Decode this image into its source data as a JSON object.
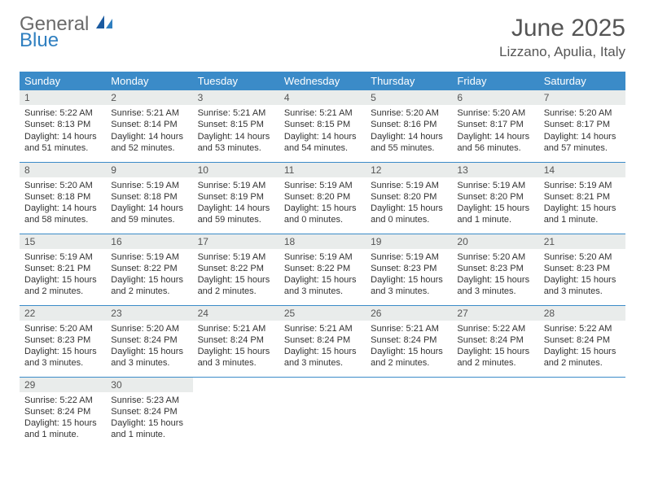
{
  "logo": {
    "line1": "General",
    "line2": "Blue"
  },
  "title": "June 2025",
  "location": "Lizzano, Apulia, Italy",
  "header_color": "#3b8bc8",
  "daynum_bg": "#e9eceb",
  "border_color": "#3b8bc8",
  "weekdays": [
    "Sunday",
    "Monday",
    "Tuesday",
    "Wednesday",
    "Thursday",
    "Friday",
    "Saturday"
  ],
  "days": [
    {
      "n": 1,
      "sunrise": "5:22 AM",
      "sunset": "8:13 PM",
      "daylight": "14 hours and 51 minutes."
    },
    {
      "n": 2,
      "sunrise": "5:21 AM",
      "sunset": "8:14 PM",
      "daylight": "14 hours and 52 minutes."
    },
    {
      "n": 3,
      "sunrise": "5:21 AM",
      "sunset": "8:15 PM",
      "daylight": "14 hours and 53 minutes."
    },
    {
      "n": 4,
      "sunrise": "5:21 AM",
      "sunset": "8:15 PM",
      "daylight": "14 hours and 54 minutes."
    },
    {
      "n": 5,
      "sunrise": "5:20 AM",
      "sunset": "8:16 PM",
      "daylight": "14 hours and 55 minutes."
    },
    {
      "n": 6,
      "sunrise": "5:20 AM",
      "sunset": "8:17 PM",
      "daylight": "14 hours and 56 minutes."
    },
    {
      "n": 7,
      "sunrise": "5:20 AM",
      "sunset": "8:17 PM",
      "daylight": "14 hours and 57 minutes."
    },
    {
      "n": 8,
      "sunrise": "5:20 AM",
      "sunset": "8:18 PM",
      "daylight": "14 hours and 58 minutes."
    },
    {
      "n": 9,
      "sunrise": "5:19 AM",
      "sunset": "8:18 PM",
      "daylight": "14 hours and 59 minutes."
    },
    {
      "n": 10,
      "sunrise": "5:19 AM",
      "sunset": "8:19 PM",
      "daylight": "14 hours and 59 minutes."
    },
    {
      "n": 11,
      "sunrise": "5:19 AM",
      "sunset": "8:20 PM",
      "daylight": "15 hours and 0 minutes."
    },
    {
      "n": 12,
      "sunrise": "5:19 AM",
      "sunset": "8:20 PM",
      "daylight": "15 hours and 0 minutes."
    },
    {
      "n": 13,
      "sunrise": "5:19 AM",
      "sunset": "8:20 PM",
      "daylight": "15 hours and 1 minute."
    },
    {
      "n": 14,
      "sunrise": "5:19 AM",
      "sunset": "8:21 PM",
      "daylight": "15 hours and 1 minute."
    },
    {
      "n": 15,
      "sunrise": "5:19 AM",
      "sunset": "8:21 PM",
      "daylight": "15 hours and 2 minutes."
    },
    {
      "n": 16,
      "sunrise": "5:19 AM",
      "sunset": "8:22 PM",
      "daylight": "15 hours and 2 minutes."
    },
    {
      "n": 17,
      "sunrise": "5:19 AM",
      "sunset": "8:22 PM",
      "daylight": "15 hours and 2 minutes."
    },
    {
      "n": 18,
      "sunrise": "5:19 AM",
      "sunset": "8:22 PM",
      "daylight": "15 hours and 3 minutes."
    },
    {
      "n": 19,
      "sunrise": "5:19 AM",
      "sunset": "8:23 PM",
      "daylight": "15 hours and 3 minutes."
    },
    {
      "n": 20,
      "sunrise": "5:20 AM",
      "sunset": "8:23 PM",
      "daylight": "15 hours and 3 minutes."
    },
    {
      "n": 21,
      "sunrise": "5:20 AM",
      "sunset": "8:23 PM",
      "daylight": "15 hours and 3 minutes."
    },
    {
      "n": 22,
      "sunrise": "5:20 AM",
      "sunset": "8:23 PM",
      "daylight": "15 hours and 3 minutes."
    },
    {
      "n": 23,
      "sunrise": "5:20 AM",
      "sunset": "8:24 PM",
      "daylight": "15 hours and 3 minutes."
    },
    {
      "n": 24,
      "sunrise": "5:21 AM",
      "sunset": "8:24 PM",
      "daylight": "15 hours and 3 minutes."
    },
    {
      "n": 25,
      "sunrise": "5:21 AM",
      "sunset": "8:24 PM",
      "daylight": "15 hours and 3 minutes."
    },
    {
      "n": 26,
      "sunrise": "5:21 AM",
      "sunset": "8:24 PM",
      "daylight": "15 hours and 2 minutes."
    },
    {
      "n": 27,
      "sunrise": "5:22 AM",
      "sunset": "8:24 PM",
      "daylight": "15 hours and 2 minutes."
    },
    {
      "n": 28,
      "sunrise": "5:22 AM",
      "sunset": "8:24 PM",
      "daylight": "15 hours and 2 minutes."
    },
    {
      "n": 29,
      "sunrise": "5:22 AM",
      "sunset": "8:24 PM",
      "daylight": "15 hours and 1 minute."
    },
    {
      "n": 30,
      "sunrise": "5:23 AM",
      "sunset": "8:24 PM",
      "daylight": "15 hours and 1 minute."
    }
  ],
  "labels": {
    "sunrise": "Sunrise:",
    "sunset": "Sunset:",
    "daylight": "Daylight:"
  },
  "start_weekday": 0,
  "days_in_month": 30
}
